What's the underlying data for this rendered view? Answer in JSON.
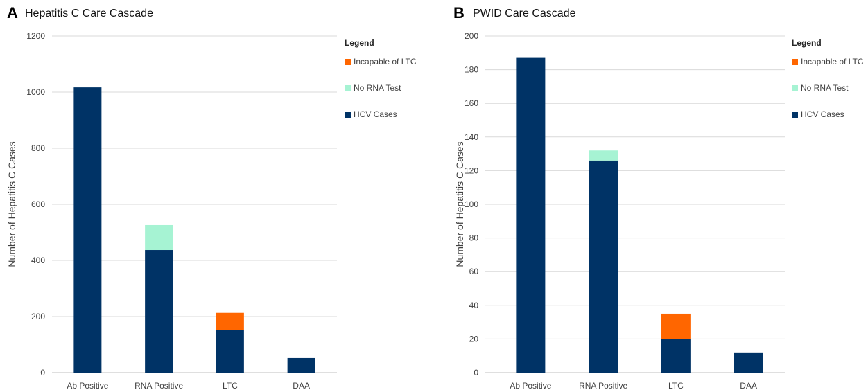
{
  "panels": [
    {
      "letter": "A",
      "title": "Hepatitis C  Care Cascade",
      "legend_title": "Legend",
      "legend": [
        "Incapable of LTC",
        "No RNA Test",
        "HCV Cases"
      ],
      "ylabel": "Number of Hepatitis C Cases"
    },
    {
      "letter": "B",
      "title": "PWID Care Cascade",
      "legend_title": "Legend",
      "legend": [
        "Incapable of LTC",
        "No RNA Test",
        "HCV Cases"
      ],
      "ylabel": "Number of Hepatitis C Cases"
    }
  ],
  "colors": {
    "hcv_cases": "#003366",
    "no_rna_test": "#a6f3d3",
    "incapable_ltc": "#ff6600",
    "grid": "#d9d9d9",
    "axis": "#bfbfbf",
    "text": "#404040"
  },
  "chart_data": [
    {
      "type": "bar",
      "stacked": true,
      "title": "Hepatitis C  Care Cascade",
      "ylabel": "Number of Hepatitis C Cases",
      "xlabel": "",
      "categories": [
        "Ab Positive",
        "RNA Positive",
        "LTC",
        "DAA"
      ],
      "ylim": [
        0,
        1200
      ],
      "yticks": [
        0,
        200,
        400,
        600,
        800,
        1000,
        1200
      ],
      "grid": true,
      "legend_position": "right",
      "series": [
        {
          "name": "HCV Cases",
          "values": [
            1017,
            437,
            152,
            52
          ]
        },
        {
          "name": "No RNA Test",
          "values": [
            0,
            89,
            0,
            0
          ]
        },
        {
          "name": "Incapable of LTC",
          "values": [
            0,
            0,
            61,
            0
          ]
        }
      ]
    },
    {
      "type": "bar",
      "stacked": true,
      "title": "PWID Care Cascade",
      "ylabel": "Number of Hepatitis C Cases",
      "xlabel": "",
      "categories": [
        "Ab Positive",
        "RNA Positive",
        "LTC",
        "DAA"
      ],
      "ylim": [
        0,
        200
      ],
      "yticks": [
        0,
        20,
        40,
        60,
        80,
        100,
        120,
        140,
        160,
        180,
        200
      ],
      "grid": true,
      "legend_position": "right",
      "series": [
        {
          "name": "HCV Cases",
          "values": [
            187,
            126,
            20,
            12
          ]
        },
        {
          "name": "No RNA Test",
          "values": [
            0,
            6,
            0,
            0
          ]
        },
        {
          "name": "Incapable of LTC",
          "values": [
            0,
            0,
            15,
            0
          ]
        }
      ]
    }
  ]
}
